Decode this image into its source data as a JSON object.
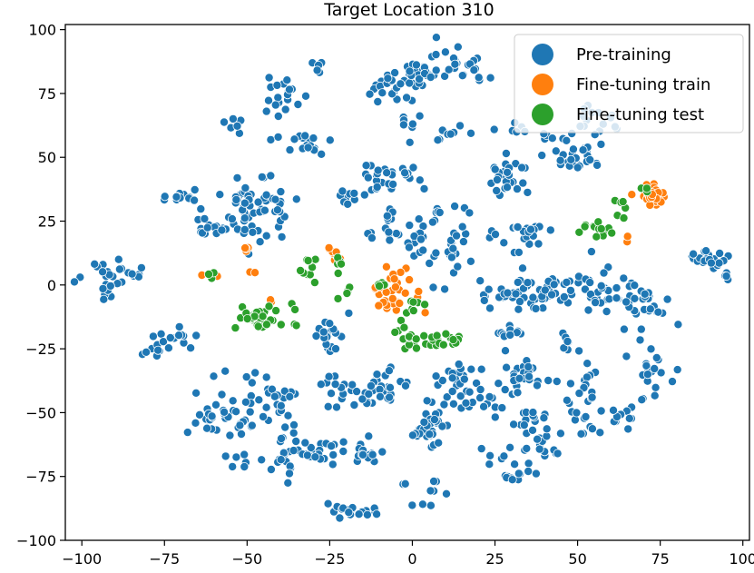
{
  "chart_data": {
    "type": "scatter",
    "title": "Target Location 310",
    "xlabel": "",
    "ylabel": "",
    "xlim": [
      -105,
      102
    ],
    "ylim": [
      -100,
      102
    ],
    "xticks": [
      -100,
      -75,
      -50,
      -25,
      0,
      25,
      50,
      75,
      100
    ],
    "yticks": [
      -100,
      -75,
      -50,
      -25,
      0,
      25,
      50,
      75,
      100
    ],
    "grid": false,
    "legend": "top-right",
    "series": [
      {
        "name": "Pre-training",
        "color": "#1f77b4",
        "clusters": [
          {
            "x": -90,
            "y": 3,
            "spread": [
              5,
              7
            ],
            "n": 30
          },
          {
            "x": -78,
            "y": -25,
            "spread": [
              3,
              4
            ],
            "n": 10
          },
          {
            "x": -71,
            "y": -21,
            "spread": [
              4,
              4
            ],
            "n": 10
          },
          {
            "x": -70,
            "y": 35,
            "spread": [
              4,
              2
            ],
            "n": 12
          },
          {
            "x": -62,
            "y": 24,
            "spread": [
              3,
              5
            ],
            "n": 12
          },
          {
            "x": -54,
            "y": 62,
            "spread": [
              3,
              3
            ],
            "n": 6
          },
          {
            "x": -52,
            "y": 35,
            "spread": [
              2,
              3
            ],
            "n": 8
          },
          {
            "x": -48,
            "y": 28,
            "spread": [
              7,
              9
            ],
            "n": 45
          },
          {
            "x": -40,
            "y": 30,
            "spread": [
              2,
              4
            ],
            "n": 8
          },
          {
            "x": -40,
            "y": 74,
            "spread": [
              4,
              6
            ],
            "n": 20
          },
          {
            "x": -34,
            "y": 55,
            "spread": [
              6,
              4
            ],
            "n": 18
          },
          {
            "x": -30,
            "y": 85,
            "spread": [
              2,
              3
            ],
            "n": 5
          },
          {
            "x": -20,
            "y": 35,
            "spread": [
              3,
              3
            ],
            "n": 8
          },
          {
            "x": -12,
            "y": 40,
            "spread": [
              4,
              4
            ],
            "n": 12
          },
          {
            "x": -8,
            "y": 24,
            "spread": [
              4,
              5
            ],
            "n": 15
          },
          {
            "x": -5,
            "y": 42,
            "spread": [
              5,
              4
            ],
            "n": 15
          },
          {
            "x": -5,
            "y": 77,
            "spread": [
              5,
              6
            ],
            "n": 25
          },
          {
            "x": 0,
            "y": 62,
            "spread": [
              3,
              3
            ],
            "n": 6
          },
          {
            "x": 5,
            "y": 83,
            "spread": [
              5,
              4
            ],
            "n": 25
          },
          {
            "x": 12,
            "y": 88,
            "spread": [
              4,
              4
            ],
            "n": 15
          },
          {
            "x": 20,
            "y": 82,
            "spread": [
              3,
              3
            ],
            "n": 8
          },
          {
            "x": 12,
            "y": 59,
            "spread": [
              4,
              2
            ],
            "n": 8
          },
          {
            "x": 3,
            "y": 20,
            "spread": [
              3,
              10
            ],
            "n": 28
          },
          {
            "x": 13,
            "y": 17,
            "spread": [
              3,
              9
            ],
            "n": 20
          },
          {
            "x": 29,
            "y": 43,
            "spread": [
              4,
              5
            ],
            "n": 28
          },
          {
            "x": 30,
            "y": 60,
            "spread": [
              3,
              2
            ],
            "n": 6
          },
          {
            "x": 34,
            "y": 20,
            "spread": [
              6,
              4
            ],
            "n": 25
          },
          {
            "x": 42,
            "y": 58,
            "spread": [
              3,
              2
            ],
            "n": 6
          },
          {
            "x": 50,
            "y": 50,
            "spread": [
              6,
              5
            ],
            "n": 28
          },
          {
            "x": 55,
            "y": 65,
            "spread": [
              6,
              4
            ],
            "n": 15
          },
          {
            "x": 88,
            "y": 10,
            "spread": [
              5,
              2
            ],
            "n": 22
          },
          {
            "x": 95,
            "y": 3,
            "spread": [
              2,
              2
            ],
            "n": 4
          },
          {
            "x": 37,
            "y": -3,
            "spread": [
              12,
              5
            ],
            "n": 65
          },
          {
            "x": 60,
            "y": -2,
            "spread": [
              7,
              5
            ],
            "n": 30
          },
          {
            "x": 70,
            "y": -7,
            "spread": [
              6,
              5
            ],
            "n": 25
          },
          {
            "x": 30,
            "y": -20,
            "spread": [
              5,
              4
            ],
            "n": 12
          },
          {
            "x": 32,
            "y": -37,
            "spread": [
              6,
              5
            ],
            "n": 30
          },
          {
            "x": 48,
            "y": -22,
            "spread": [
              4,
              3
            ],
            "n": 8
          },
          {
            "x": 52,
            "y": -38,
            "spread": [
              3,
              5
            ],
            "n": 12
          },
          {
            "x": 72,
            "y": -35,
            "spread": [
              4,
              7
            ],
            "n": 20
          },
          {
            "x": 18,
            "y": -45,
            "spread": [
              6,
              4
            ],
            "n": 20
          },
          {
            "x": 12,
            "y": -35,
            "spread": [
              6,
              4
            ],
            "n": 15
          },
          {
            "x": 35,
            "y": -55,
            "spread": [
              5,
              4
            ],
            "n": 15
          },
          {
            "x": 50,
            "y": -52,
            "spread": [
              5,
              6
            ],
            "n": 15
          },
          {
            "x": 65,
            "y": -52,
            "spread": [
              3,
              3
            ],
            "n": 10
          },
          {
            "x": 30,
            "y": -70,
            "spread": [
              5,
              7
            ],
            "n": 15
          },
          {
            "x": 40,
            "y": -62,
            "spread": [
              4,
              4
            ],
            "n": 15
          },
          {
            "x": 28,
            "y": -76,
            "spread": [
              2,
              2
            ],
            "n": 4
          },
          {
            "x": 5,
            "y": -55,
            "spread": [
              3,
              5
            ],
            "n": 35
          },
          {
            "x": 2,
            "y": -80,
            "spread": [
              5,
              4
            ],
            "n": 10
          },
          {
            "x": -10,
            "y": -40,
            "spread": [
              5,
              5
            ],
            "n": 28
          },
          {
            "x": -18,
            "y": -45,
            "spread": [
              5,
              3
            ],
            "n": 10
          },
          {
            "x": -25,
            "y": -38,
            "spread": [
              3,
              3
            ],
            "n": 8
          },
          {
            "x": -25,
            "y": -65,
            "spread": [
              7,
              4
            ],
            "n": 20
          },
          {
            "x": -13,
            "y": -65,
            "spread": [
              3,
              4
            ],
            "n": 12
          },
          {
            "x": -35,
            "y": -66,
            "spread": [
              4,
              6
            ],
            "n": 15
          },
          {
            "x": -25,
            "y": -20,
            "spread": [
              4,
              5
            ],
            "n": 20
          },
          {
            "x": -22,
            "y": -88,
            "spread": [
              3,
              2
            ],
            "n": 10
          },
          {
            "x": -14,
            "y": -88,
            "spread": [
              3,
              2
            ],
            "n": 10
          },
          {
            "x": -52,
            "y": -47,
            "spread": [
              8,
              10
            ],
            "n": 35
          },
          {
            "x": -42,
            "y": -52,
            "spread": [
              5,
              6
            ],
            "n": 14
          },
          {
            "x": -65,
            "y": -55,
            "spread": [
              3,
              3
            ],
            "n": 5
          },
          {
            "x": -60,
            "y": -50,
            "spread": [
              3,
              3
            ],
            "n": 6
          },
          {
            "x": -53,
            "y": -69,
            "spread": [
              2,
              3
            ],
            "n": 6
          },
          {
            "x": -38,
            "y": -42,
            "spread": [
              3,
              3
            ],
            "n": 6
          },
          {
            "x": -40,
            "y": -70,
            "spread": [
              3,
              3
            ],
            "n": 6
          }
        ]
      },
      {
        "name": "Fine-tuning train",
        "color": "#ff7f0e",
        "clusters": [
          {
            "x": -62,
            "y": 4,
            "spread": [
              2,
              1
            ],
            "n": 4
          },
          {
            "x": -50,
            "y": 14,
            "spread": [
              1,
              2
            ],
            "n": 4
          },
          {
            "x": -49,
            "y": 5,
            "spread": [
              1,
              1
            ],
            "n": 2
          },
          {
            "x": -43,
            "y": -5,
            "spread": [
              1,
              1
            ],
            "n": 2
          },
          {
            "x": -23,
            "y": 12,
            "spread": [
              2,
              2
            ],
            "n": 8
          },
          {
            "x": -5,
            "y": -3,
            "spread": [
              5,
              6
            ],
            "n": 38
          },
          {
            "x": 73,
            "y": 35,
            "spread": [
              3,
              3
            ],
            "n": 25
          },
          {
            "x": 65,
            "y": 18,
            "spread": [
              1,
              1
            ],
            "n": 2
          }
        ]
      },
      {
        "name": "Fine-tuning test",
        "color": "#2ca02c",
        "clusters": [
          {
            "x": -60,
            "y": 4,
            "spread": [
              2,
              1
            ],
            "n": 3
          },
          {
            "x": -47,
            "y": -13,
            "spread": [
              4,
              3
            ],
            "n": 32
          },
          {
            "x": -38,
            "y": -12,
            "spread": [
              2,
              4
            ],
            "n": 5
          },
          {
            "x": -31,
            "y": 5,
            "spread": [
              2,
              5
            ],
            "n": 10
          },
          {
            "x": -22,
            "y": 10,
            "spread": [
              2,
              3
            ],
            "n": 5
          },
          {
            "x": -20,
            "y": -3,
            "spread": [
              2,
              3
            ],
            "n": 4
          },
          {
            "x": -10,
            "y": 0,
            "spread": [
              2,
              2
            ],
            "n": 4
          },
          {
            "x": -3,
            "y": -18,
            "spread": [
              2,
              4
            ],
            "n": 8
          },
          {
            "x": 2,
            "y": -8,
            "spread": [
              3,
              2
            ],
            "n": 6
          },
          {
            "x": 7,
            "y": -22,
            "spread": [
              6,
              2
            ],
            "n": 30
          },
          {
            "x": 57,
            "y": 22,
            "spread": [
              4,
              2
            ],
            "n": 14
          },
          {
            "x": 63,
            "y": 29,
            "spread": [
              2,
              3
            ],
            "n": 6
          },
          {
            "x": 70,
            "y": 37,
            "spread": [
              2,
              1
            ],
            "n": 3
          }
        ]
      }
    ]
  }
}
